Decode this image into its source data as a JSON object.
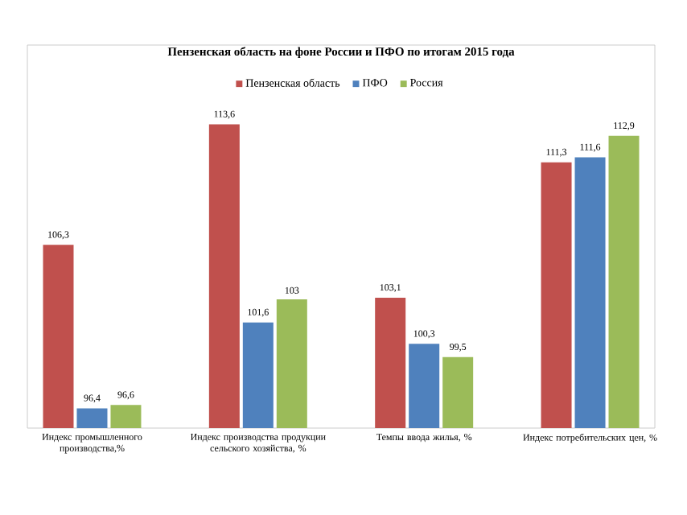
{
  "chart_data": {
    "type": "bar",
    "title": "Пензенская область на фоне России и ПФО по итогам 2015 года",
    "categories": [
      "Индекс промышленного производства,%",
      "Индекс производства продукции сельского хозяйства, %",
      "Темпы ввода жилья, %",
      "Индекс потребительских цен, %"
    ],
    "series": [
      {
        "name": "Пензенская область",
        "color": "#c0504d",
        "values": [
          106.3,
          113.6,
          103.1,
          111.3
        ],
        "value_labels": [
          "106,3",
          "113,6",
          "103,1",
          "111,3"
        ]
      },
      {
        "name": "ПФО",
        "color": "#4f81bd",
        "values": [
          96.4,
          101.6,
          100.3,
          111.6
        ],
        "value_labels": [
          "96,4",
          "101,6",
          "100,3",
          "111,6"
        ]
      },
      {
        "name": "Россия",
        "color": "#9bbb59",
        "values": [
          96.6,
          103,
          99.5,
          112.9
        ],
        "value_labels": [
          "96,6",
          "103",
          "99,5",
          "112,9"
        ]
      }
    ],
    "ylim": [
      95.2,
      118.4
    ],
    "legend": "top"
  }
}
